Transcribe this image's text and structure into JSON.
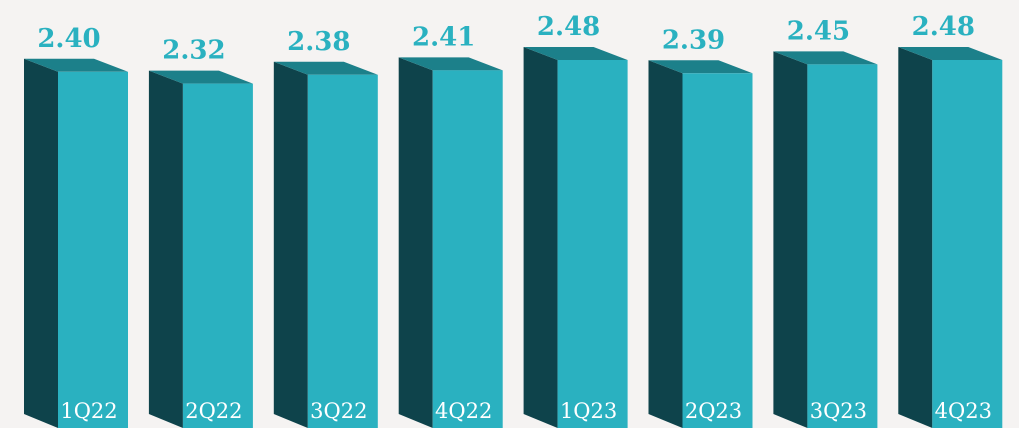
{
  "chart_data": {
    "type": "bar",
    "title": "",
    "xlabel": "",
    "ylabel": "",
    "categories": [
      "1Q22",
      "2Q22",
      "3Q22",
      "4Q22",
      "1Q23",
      "2Q23",
      "3Q23",
      "4Q23"
    ],
    "values": [
      2.4,
      2.32,
      2.38,
      2.41,
      2.48,
      2.39,
      2.45,
      2.48
    ],
    "value_labels": [
      "2.40",
      "2.32",
      "2.38",
      "2.41",
      "2.48",
      "2.39",
      "2.45",
      "2.48"
    ],
    "ylim": [
      0,
      2.52
    ],
    "grid": false,
    "legend": "none",
    "colors": {
      "bar_front": "#2ab1c0",
      "bar_side": "#0e434b",
      "bar_top": "#1c808a",
      "value_label": "#2ab1c0",
      "category_label": "#ffffff",
      "background": "#f5f3f2"
    }
  }
}
